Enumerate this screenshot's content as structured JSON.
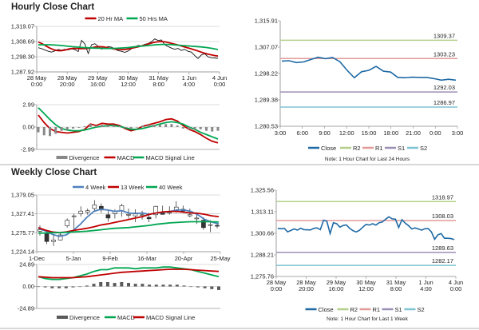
{
  "chart_data": [
    {
      "id": "hourly_week",
      "type": "line",
      "title": "Hourly Close Chart",
      "ylim": [
        1287.92,
        1319.07
      ],
      "yticks": [
        "1,319.07",
        "1,308.69",
        "1,298.30",
        "1,287.92"
      ],
      "xticks": [
        [
          "28 May",
          "0:00"
        ],
        [
          "28 May",
          "20:00"
        ],
        [
          "29 May",
          "16:00"
        ],
        [
          "30 May",
          "12:00"
        ],
        [
          "31 May",
          "8:00"
        ],
        [
          "1 Jun",
          "4:00"
        ],
        [
          "4 Jun",
          "0:00"
        ]
      ],
      "legend": [
        "20 Hr MA",
        "50 Hrs MA"
      ],
      "series": [
        {
          "name": "Close",
          "color": "#111111",
          "values": [
            1304.5,
            1303.8,
            1302.9,
            1302,
            1301.5,
            1302.3,
            1303.2,
            1302.8,
            1303.4,
            1303,
            1303.7,
            1303.2,
            1301.8,
            1309.5,
            1307,
            1300.5,
            1306.5,
            1307.2,
            1305.5,
            1303.5,
            1304.3,
            1305.3,
            1304.8,
            1303.6,
            1302.4,
            1302,
            1301.3,
            1302.2,
            1303.8,
            1305.1,
            1306,
            1305.8,
            1306.8,
            1307.3,
            1308.5,
            1310.5,
            1309.4,
            1309.8,
            1306.5,
            1305.3,
            1304.2,
            1303.4,
            1304,
            1302.6,
            1303.4,
            1302,
            1301.5,
            1299.2,
            1297.1,
            1299.5,
            1300.4,
            1298.3,
            1297.6,
            1297.5,
            1297.2
          ]
        },
        {
          "name": "20 Hr MA",
          "color": "#c00000",
          "values": [
            1308.3,
            1307.2,
            1305.6,
            1304.2,
            1303.1,
            1302.5,
            1302.4,
            1302.9,
            1303.6,
            1304,
            1304,
            1303.9,
            1303.8,
            1304,
            1304.5,
            1305,
            1305.2,
            1305,
            1304.6,
            1304,
            1303.6,
            1303.3,
            1303.2,
            1303.4,
            1303.8,
            1304.4,
            1305,
            1305.7,
            1306.4,
            1307.2,
            1307.9,
            1308.4,
            1308.7,
            1308.5,
            1308,
            1307.3,
            1306.7,
            1306,
            1305.2,
            1304.4,
            1303.7,
            1302.9,
            1302,
            1301.1,
            1300.3,
            1299.7,
            1299.2,
            1298.8
          ]
        },
        {
          "name": "50 Hrs MA",
          "color": "#00a651",
          "values": [
            1306.4,
            1306.5,
            1306.5,
            1306.3,
            1306,
            1305.6,
            1305.2,
            1304.9,
            1304.6,
            1304.4,
            1304.2,
            1304.1,
            1304,
            1304,
            1304.1,
            1304.3,
            1304.6,
            1305,
            1305.4,
            1305.8,
            1306.2,
            1306.5,
            1306.7,
            1306.7,
            1306.5,
            1306.2,
            1305.9,
            1305.6,
            1305.3,
            1305,
            1304.6,
            1304,
            1303.2
          ]
        }
      ]
    },
    {
      "id": "hourly_macd",
      "type": "line",
      "ylim": [
        -2.99,
        2.99
      ],
      "yticks": [
        "2.99",
        "0.00",
        "-2.99"
      ],
      "legend": [
        "Divergence",
        "MACD",
        "MACD Signal Line"
      ],
      "series": [
        {
          "name": "MACD",
          "color": "#c00000",
          "values": [
            1.6,
            0.6,
            -0.2,
            -0.6,
            -0.7,
            -0.8,
            -0.7,
            -0.6,
            -0.3,
            0.4,
            0.2,
            0.5,
            0.4,
            0.4,
            0.2,
            -0.2,
            -0.5,
            -0.3,
            0.1,
            0.3,
            0.5,
            0.7,
            1.0,
            1.1,
            0.8,
            0.2,
            -0.3,
            -0.6,
            -1.0,
            -1.5,
            -1.9,
            -2.1
          ]
        },
        {
          "name": "MACD Signal Line",
          "color": "#00a651",
          "values": [
            2.6,
            1.8,
            1.0,
            0.3,
            -0.2,
            -0.4,
            -0.5,
            -0.5,
            -0.4,
            -0.2,
            0.0,
            0.1,
            0.2,
            0.2,
            0.1,
            -0.1,
            -0.3,
            -0.3,
            -0.2,
            0.0,
            0.2,
            0.4,
            0.6,
            0.7,
            0.6,
            0.4,
            0.0,
            -0.3,
            -0.7,
            -1.0,
            -1.3,
            -1.6
          ]
        },
        {
          "name": "Divergence",
          "color": "#888888",
          "type": "bar",
          "values": [
            -0.7,
            -1.1,
            -1.2,
            -0.9,
            -0.5,
            -0.4,
            -0.2,
            -0.1,
            0.1,
            0.4,
            0.2,
            0.3,
            0.2,
            0.2,
            0.1,
            -0.1,
            -0.2,
            0.0,
            0.2,
            0.3,
            0.3,
            0.3,
            0.4,
            0.4,
            0.2,
            -0.2,
            -0.3,
            -0.3,
            -0.3,
            -0.5,
            -0.6,
            -0.5
          ]
        }
      ]
    },
    {
      "id": "hourly_24h",
      "type": "line",
      "ylim": [
        1280.53,
        1315.91
      ],
      "yticks": [
        "1,315.91",
        "1,307.07",
        "1,298.22",
        "1,289.38",
        "1,280.53"
      ],
      "xticks": [
        "3:00",
        "6:00",
        "9:00",
        "12:00",
        "15:00",
        "18:00",
        "21:00",
        "0:00",
        "3:00"
      ],
      "levels": [
        {
          "name": "R2",
          "value": 1309.37,
          "label": "1309.37",
          "color": "#b5cf8a"
        },
        {
          "name": "R1",
          "value": 1303.23,
          "label": "1303.23",
          "color": "#e39a9a"
        },
        {
          "name": "S1",
          "value": 1292.03,
          "label": "1292.03",
          "color": "#9b8fb5"
        },
        {
          "name": "S2",
          "value": 1286.97,
          "label": "1286.97",
          "color": "#7ec4d1"
        }
      ],
      "series": [
        {
          "name": "Close",
          "color": "#1f6aa5",
          "values": [
            1302.4,
            1302.5,
            1301.9,
            1302.1,
            1302.9,
            1303.7,
            1303.2,
            1303.6,
            1302.2,
            1299.3,
            1296.8,
            1298.8,
            1299.3,
            1300.6,
            1299,
            1298.7,
            1296.9,
            1296.8,
            1297.0,
            1296.9,
            1296.9,
            1296.5,
            1296.0,
            1296.3,
            1296.0
          ]
        }
      ],
      "legend": [
        "Close",
        "R2",
        "R1",
        "S1",
        "S2"
      ],
      "note": "Note: 1 Hour Chart for Last 24 Hours"
    },
    {
      "id": "weekly",
      "type": "candlestick",
      "title": "Weekly Close Chart",
      "ylim": [
        1224.14,
        1379.05
      ],
      "yticks": [
        "1,379.05",
        "1,327.41",
        "1,275.77",
        "1,224.14"
      ],
      "xticks": [
        "1-Dec",
        "5-Jan",
        "9-Feb",
        "16-Mar",
        "20-Apr",
        "25-May"
      ],
      "legend": [
        "4 Week",
        "13 Week",
        "40 Week"
      ],
      "candles": [
        [
          1280,
          1284,
          1296,
          1268
        ],
        [
          1275,
          1252,
          1278,
          1245
        ],
        [
          1252,
          1256,
          1270,
          1240
        ],
        [
          1256,
          1270,
          1276,
          1255
        ],
        [
          1295,
          1310,
          1315,
          1290
        ],
        [
          1320,
          1322,
          1328,
          1285
        ],
        [
          1328,
          1335,
          1348,
          1320
        ],
        [
          1332,
          1336,
          1342,
          1325
        ],
        [
          1342,
          1352,
          1365,
          1335
        ],
        [
          1348,
          1338,
          1356,
          1330
        ],
        [
          1325,
          1316,
          1338,
          1306
        ],
        [
          1328,
          1335,
          1340,
          1315
        ],
        [
          1335,
          1350,
          1355,
          1320
        ],
        [
          1326,
          1326,
          1342,
          1315
        ],
        [
          1322,
          1330,
          1340,
          1305
        ],
        [
          1325,
          1325,
          1336,
          1312
        ],
        [
          1318,
          1314,
          1330,
          1305
        ],
        [
          1325,
          1348,
          1350,
          1315
        ],
        [
          1330,
          1326,
          1350,
          1326
        ],
        [
          1330,
          1332,
          1348,
          1325
        ],
        [
          1336,
          1346,
          1362,
          1330
        ],
        [
          1340,
          1335,
          1350,
          1330
        ],
        [
          1322,
          1325,
          1342,
          1318
        ],
        [
          1315,
          1316,
          1330,
          1300
        ],
        [
          1310,
          1290,
          1318,
          1284
        ],
        [
          1298,
          1298,
          1310,
          1278
        ],
        [
          1296,
          1295,
          1300,
          1288
        ]
      ],
      "series": [
        {
          "name": "4 Week",
          "color": "#4f81bd",
          "values": [
            1288,
            1281,
            1272,
            1266,
            1270,
            1282,
            1298,
            1318,
            1334,
            1340,
            1338,
            1334,
            1336,
            1330,
            1328,
            1330,
            1326,
            1330,
            1332,
            1334,
            1338,
            1338,
            1334,
            1325,
            1312,
            1305,
            1300
          ]
        },
        {
          "name": "13 Week",
          "color": "#c00000",
          "values": [
            1290,
            1283,
            1278,
            1276,
            1278,
            1282,
            1285,
            1288,
            1292,
            1297,
            1300,
            1304,
            1308,
            1312,
            1316,
            1320,
            1326,
            1330,
            1333,
            1334,
            1334,
            1332,
            1330,
            1329,
            1326,
            1322,
            1320
          ]
        },
        {
          "name": "40 Week",
          "color": "#00a651",
          "values": [
            1275,
            1275,
            1276,
            1276,
            1277,
            1278,
            1279,
            1280,
            1282,
            1284,
            1286,
            1288,
            1289,
            1290,
            1292,
            1294,
            1296,
            1299,
            1301,
            1303,
            1304,
            1305,
            1306,
            1306,
            1306,
            1306,
            1305
          ]
        }
      ]
    },
    {
      "id": "weekly_macd",
      "type": "line",
      "ylim": [
        -24.89,
        24.89
      ],
      "yticks": [
        "24.89",
        "0.00",
        "-24.89"
      ],
      "legend": [
        "Divergence",
        "MACD",
        "MACD Signal Line"
      ],
      "series": [
        {
          "name": "Divergence",
          "color": "#595959",
          "type": "bar",
          "values": [
            0,
            -1,
            -2,
            -2,
            -2,
            -1,
            0,
            1,
            3,
            5,
            5,
            4,
            5,
            4,
            3,
            3,
            2,
            2,
            2,
            2,
            2,
            1,
            0,
            -1,
            -2,
            -3,
            -4
          ]
        },
        {
          "name": "MACD",
          "color": "#00a651",
          "values": [
            11,
            9,
            8,
            8,
            9,
            10,
            12,
            14,
            17,
            19,
            19,
            21,
            21,
            21,
            20,
            21,
            21,
            21,
            22,
            22,
            21,
            20,
            19,
            17,
            15,
            13,
            11
          ]
        },
        {
          "name": "MACD Signal Line",
          "color": "#c00000",
          "values": [
            11,
            10.5,
            10,
            10,
            10,
            10,
            10.5,
            11,
            12,
            13,
            14,
            15,
            16,
            16.5,
            17,
            17.5,
            18,
            18.5,
            19,
            19.5,
            19.5,
            19.5,
            19,
            18.5,
            18,
            17.5,
            17
          ]
        }
      ]
    },
    {
      "id": "hourly_1week",
      "type": "line",
      "ylim": [
        1275.76,
        1325.56
      ],
      "yticks": [
        "1,325.56",
        "1,313.11",
        "1,300.66",
        "1,288.21",
        "1,275.76"
      ],
      "xticks": [
        [
          "28 May",
          "0:00"
        ],
        [
          "28 May",
          "20:00"
        ],
        [
          "29 May",
          "16:00"
        ],
        [
          "30 May",
          "12:00"
        ],
        [
          "31 May",
          "8:00"
        ],
        [
          "1 Jun",
          "4:00"
        ],
        [
          "4 Jun",
          "0:00"
        ]
      ],
      "levels": [
        {
          "name": "R2",
          "value": 1318.97,
          "label": "1318.97",
          "color": "#b5cf8a"
        },
        {
          "name": "R1",
          "value": 1308.03,
          "label": "1308.03",
          "color": "#e39a9a"
        },
        {
          "name": "S1",
          "value": 1289.63,
          "label": "1289.63",
          "color": "#9b8fb5"
        },
        {
          "name": "S2",
          "value": 1282.17,
          "label": "1282.17",
          "color": "#7ec4d1"
        }
      ],
      "series": [
        {
          "name": "Close",
          "color": "#1f6aa5",
          "values": [
            1303.5,
            1303.3,
            1303.5,
            1301.5,
            1302.3,
            1303.2,
            1302.5,
            1303.6,
            1302.8,
            1302.7,
            1302.6,
            1303.5,
            1303.8,
            1302.8,
            1308.2,
            1307.6,
            1300.5,
            1306.8,
            1306.2,
            1304.2,
            1305.2,
            1305.5,
            1303.5,
            1302.2,
            1301.5,
            1302.4,
            1304.2,
            1305.8,
            1305.4,
            1306.2,
            1305.4,
            1306.8,
            1307.2,
            1308.8,
            1310.2,
            1309,
            1308.8,
            1304,
            1308.5,
            1306.5,
            1305.1,
            1303.2,
            1303.8,
            1303.2,
            1302.5,
            1303.3,
            1303.4,
            1301.5,
            1297.2,
            1299.8,
            1300.5,
            1297.8,
            1297.8,
            1297.6,
            1297
          ]
        }
      ],
      "legend": [
        "Close",
        "R2",
        "R1",
        "S1",
        "S2"
      ],
      "note": "Note: 1 Hour Chart for Last 1 Week"
    }
  ]
}
